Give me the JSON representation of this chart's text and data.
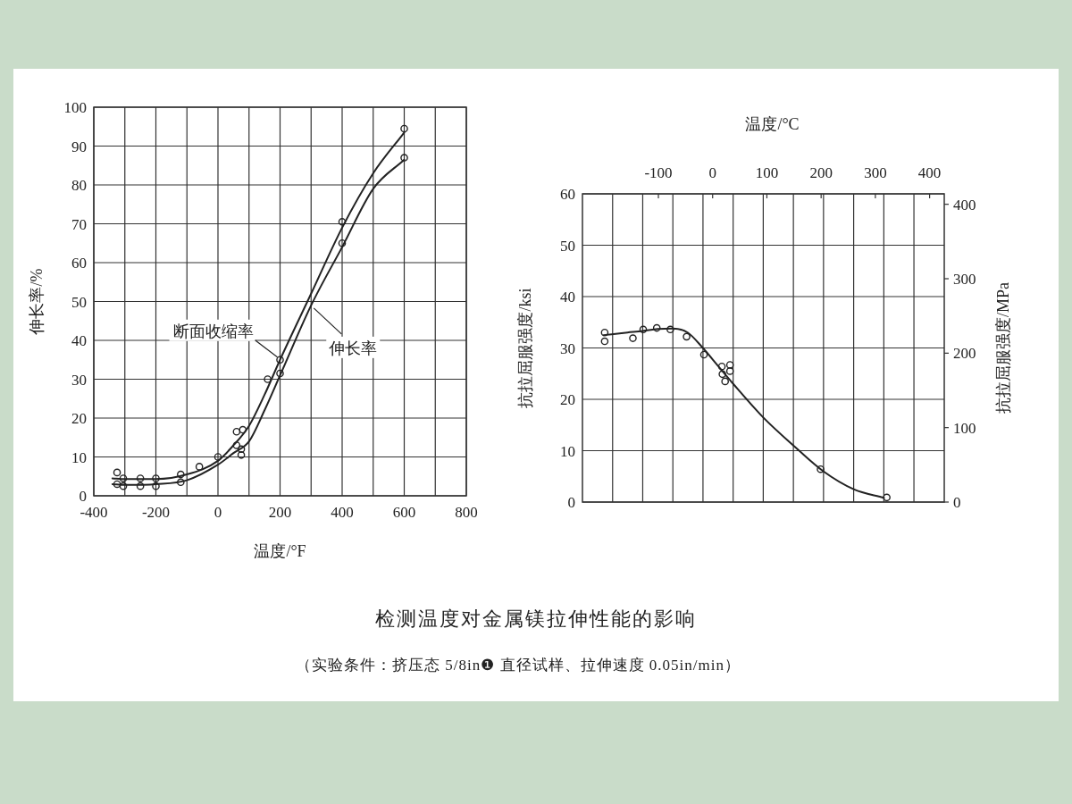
{
  "chart_data": [
    {
      "type": "line",
      "xlabel": "温度/°F",
      "ylabel": "伸长率/%",
      "xlim": [
        -400,
        800
      ],
      "ylim": [
        0,
        100
      ],
      "xticks": [
        -400,
        {
          "value": -300,
          "label": null
        },
        -200,
        {
          "value": -100,
          "label": null
        },
        0,
        {
          "value": 100,
          "label": null
        },
        200,
        {
          "value": 300,
          "label": null
        },
        400,
        {
          "value": 500,
          "label": null
        },
        600,
        {
          "value": 700,
          "label": null
        },
        800
      ],
      "yticks": [
        0,
        10,
        20,
        30,
        40,
        50,
        60,
        70,
        80,
        90,
        100
      ],
      "grid": true,
      "series": [
        {
          "name": "断面收缩率",
          "type": "line",
          "marker": "none",
          "color": "#222222",
          "x": [
            -340,
            -300,
            -200,
            -100,
            0,
            50,
            100,
            150,
            200,
            300,
            400,
            500,
            600
          ],
          "values": [
            4.5,
            4.3,
            4.3,
            5.5,
            9,
            13,
            18,
            26,
            35,
            52,
            69,
            83,
            93.5
          ]
        },
        {
          "name": "伸长率",
          "type": "line",
          "marker": "none",
          "color": "#222222",
          "x": [
            -340,
            -300,
            -200,
            -100,
            0,
            50,
            100,
            150,
            200,
            300,
            400,
            500,
            600
          ],
          "values": [
            3,
            2.8,
            3,
            4,
            8,
            11,
            14,
            22,
            31,
            49,
            64,
            79,
            86.5
          ]
        },
        {
          "type": "scatter",
          "marker": "circle",
          "color": "#222222",
          "x": [
            -325,
            -305,
            -250,
            -200,
            -120,
            -60,
            0,
            60,
            80,
            160,
            200,
            400,
            600
          ],
          "values": [
            6,
            4.5,
            4.5,
            4.5,
            5.5,
            7.5,
            10,
            16.5,
            17,
            30,
            35,
            70.5,
            94.5
          ]
        },
        {
          "type": "scatter",
          "marker": "circle",
          "color": "#222222",
          "x": [
            -325,
            -305,
            -250,
            -200,
            -120,
            60,
            75,
            75,
            200,
            400,
            600
          ],
          "values": [
            3,
            2.5,
            2.5,
            2.5,
            3.5,
            13,
            10.5,
            12,
            31.5,
            65,
            87
          ]
        }
      ]
    },
    {
      "type": "line",
      "xlabel": "温度/°C",
      "ylabel": "抗拉屈服强度/ksi",
      "y2label": "抗拉屈服强度/MPa",
      "xlim": [
        -240,
        427
      ],
      "ylim": [
        0,
        60
      ],
      "y2lim": [
        0,
        414
      ],
      "xticks": [
        {
          "value": -184.4,
          "label": null
        },
        {
          "value": -128.9,
          "label": null
        },
        -100,
        {
          "value": -73.3,
          "label": null
        },
        {
          "value": -17.8,
          "label": null
        },
        0,
        {
          "value": 37.8,
          "label": null
        },
        {
          "value": 93.3,
          "label": null
        },
        100,
        {
          "value": 148.9,
          "label": null
        },
        200,
        {
          "value": 204.4,
          "label": null
        },
        {
          "value": 260,
          "label": null
        },
        300,
        {
          "value": 315.6,
          "label": null
        },
        {
          "value": 371.1,
          "label": null
        },
        400
      ],
      "yticks": [
        0,
        10,
        20,
        30,
        40,
        50,
        60
      ],
      "y2ticks": [
        0,
        100,
        200,
        300,
        400
      ],
      "grid": true,
      "series": [
        {
          "type": "line",
          "marker": "none",
          "color": "#222222",
          "x": [
            -201,
            -157,
            -129,
            -101,
            -73,
            -46,
            -18,
            10,
            38,
            93,
            149,
            204,
            260,
            316
          ],
          "values": [
            32.5,
            33,
            33.3,
            33.7,
            33.8,
            33,
            30,
            26.5,
            23,
            16.5,
            11,
            6,
            2.5,
            0.8
          ]
        },
        {
          "type": "scatter",
          "marker": "circle",
          "color": "#222222",
          "x": [
            -199,
            -199,
            -147,
            -128,
            -103,
            -78,
            -48,
            -16,
            17,
            18,
            23,
            32,
            32,
            199,
            321
          ],
          "values": [
            33,
            31.3,
            31.9,
            33.6,
            33.9,
            33.6,
            32.2,
            28.7,
            26.4,
            24.9,
            23.5,
            26.7,
            25.5,
            6.4,
            0.9
          ]
        }
      ]
    },
    {
      "type": "other",
      "title": "检测温度对金属镁拉伸性能的影响",
      "subtitle": "（实验条件：挤压态 5/8in❶ 直径试样、拉伸速度 0.05in/min）"
    }
  ]
}
